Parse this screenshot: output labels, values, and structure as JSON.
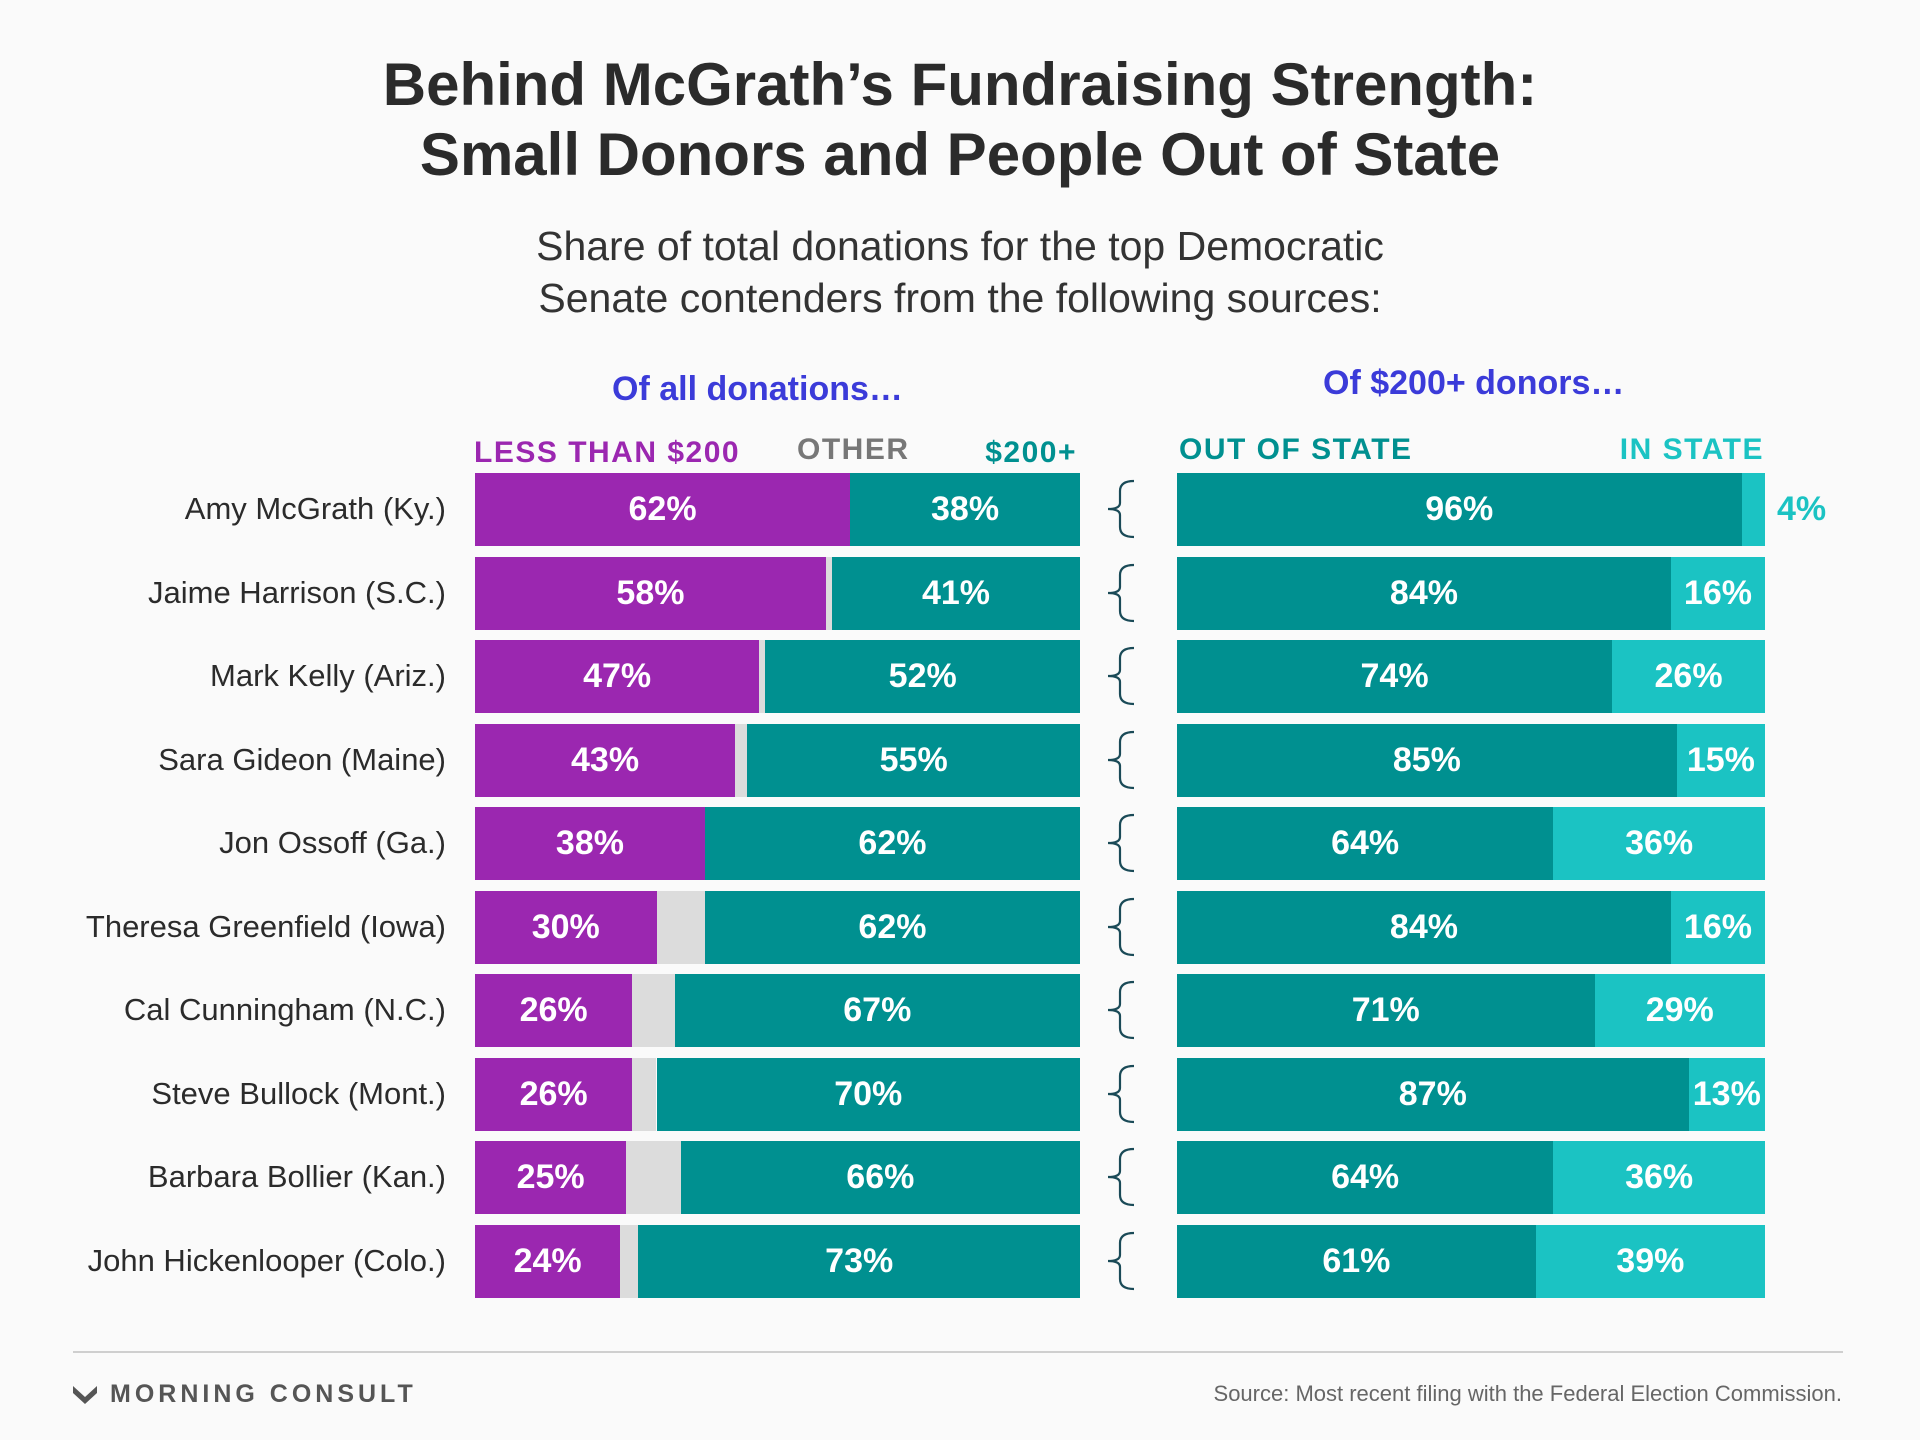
{
  "title_line1": "Behind McGrath’s Fundraising Strength:",
  "title_line2": "Small Donors and People Out of State",
  "subtitle_line1": "Share of total donations for the top Democratic",
  "subtitle_line2": "Senate contenders from the following sources:",
  "left_group_heading": "Of all donations…",
  "right_group_heading": "Of $200+ donors…",
  "legend": {
    "less_than_200": "LESS THAN $200",
    "other": "OTHER",
    "over_200": "$200+",
    "out_of_state": "OUT OF STATE",
    "in_state": "IN STATE"
  },
  "colors": {
    "less_than_200": "#9b27b0",
    "other": "#dcdcdc",
    "over_200": "#009090",
    "out_of_state": "#009090",
    "in_state": "#1bc3c3",
    "other_label": "#777777",
    "heading": "#3b3bd9"
  },
  "footer": {
    "brand": "MORNING CONSULT",
    "source": "Source: Most recent filing with the Federal Election Commission."
  },
  "chart_data": {
    "type": "bar",
    "orientation": "horizontal",
    "stacked": true,
    "categories": [
      "Amy McGrath (Ky.)",
      "Jaime Harrison (S.C.)",
      "Mark Kelly (Ariz.)",
      "Sara Gideon (Maine)",
      "Jon Ossoff (Ga.)",
      "Theresa Greenfield (Iowa)",
      "Cal Cunningham (N.C.)",
      "Steve Bullock (Mont.)",
      "Barbara Bollier (Kan.)",
      "John Hickenlooper (Colo.)"
    ],
    "panels": [
      {
        "heading": "Of all donations…",
        "series": [
          {
            "name": "LESS THAN $200",
            "values": [
              62,
              58,
              47,
              43,
              38,
              30,
              26,
              26,
              25,
              24
            ],
            "labels": [
              "62%",
              "58%",
              "47%",
              "43%",
              "38%",
              "30%",
              "26%",
              "26%",
              "25%",
              "24%"
            ]
          },
          {
            "name": "OTHER",
            "values": [
              0,
              1,
              1,
              2,
              0,
              8,
              7,
              4,
              9,
              3
            ],
            "labels": [
              "",
              "",
              "",
              "",
              "",
              "",
              "",
              "",
              "",
              ""
            ]
          },
          {
            "name": "$200+",
            "values": [
              38,
              41,
              52,
              55,
              62,
              62,
              67,
              70,
              66,
              73
            ],
            "labels": [
              "38%",
              "41%",
              "52%",
              "55%",
              "62%",
              "62%",
              "67%",
              "70%",
              "66%",
              "73%"
            ]
          }
        ]
      },
      {
        "heading": "Of $200+ donors…",
        "series": [
          {
            "name": "OUT OF STATE",
            "values": [
              96,
              84,
              74,
              85,
              64,
              84,
              71,
              87,
              64,
              61
            ],
            "labels": [
              "96%",
              "84%",
              "74%",
              "85%",
              "64%",
              "84%",
              "71%",
              "87%",
              "64%",
              "61%"
            ]
          },
          {
            "name": "IN STATE",
            "values": [
              4,
              16,
              26,
              15,
              36,
              16,
              29,
              13,
              36,
              39
            ],
            "labels": [
              "4%",
              "16%",
              "26%",
              "15%",
              "36%",
              "16%",
              "29%",
              "13%",
              "36%",
              "39%"
            ]
          }
        ]
      }
    ],
    "xlim": [
      0,
      100
    ],
    "grid": false
  }
}
